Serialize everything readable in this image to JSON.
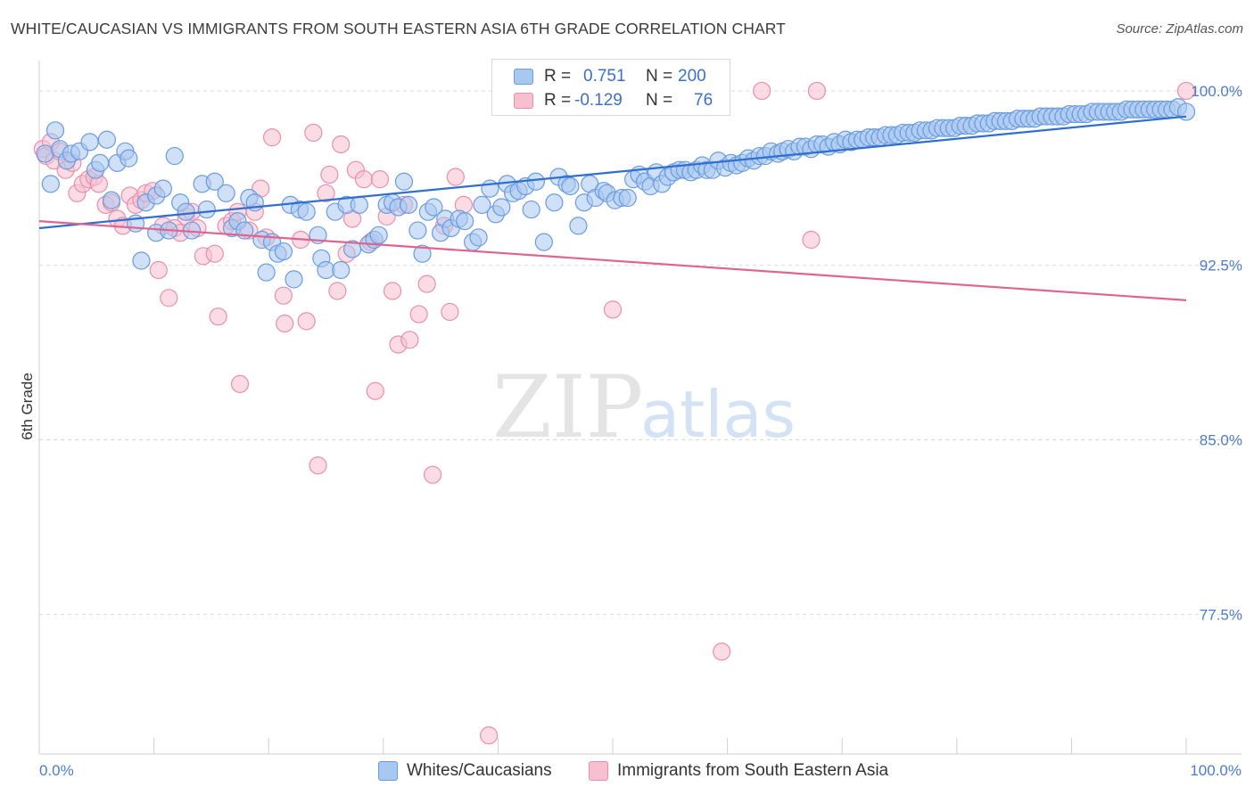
{
  "header": {
    "title": "WHITE/CAUCASIAN VS IMMIGRANTS FROM SOUTH EASTERN ASIA 6TH GRADE CORRELATION CHART",
    "source": "Source: ZipAtlas.com"
  },
  "watermark": {
    "zip": "ZIP",
    "atlas": "atlas"
  },
  "colors": {
    "blue_fill": "#a9c8f0",
    "blue_stroke": "#6a9be0",
    "blue_line": "#2f6fcf",
    "pink_fill": "#f7c0d0",
    "pink_stroke": "#e98fac",
    "pink_line": "#e0648f",
    "tick_text": "#4a7cc9",
    "grid": "#d9d9d9"
  },
  "legend": {
    "rows": [
      {
        "r_label": "R =",
        "r_value": "0.751",
        "n_label": "N =",
        "n_value": "200"
      },
      {
        "r_label": "R =",
        "r_value": "-0.129",
        "n_label": "N =",
        "n_value": "76"
      }
    ]
  },
  "bottom_legend": [
    "Whites/Caucasians",
    "Immigrants from South Eastern Asia"
  ],
  "chart_data": {
    "type": "scatter",
    "xlabel": "",
    "ylabel": "6th Grade",
    "xlim": [
      0,
      100
    ],
    "ylim": [
      71.5,
      101.3
    ],
    "x_tick_labels": [
      "0.0%",
      "100.0%"
    ],
    "y_ticks": [
      77.5,
      85.0,
      92.5,
      100.0
    ],
    "y_tick_labels": [
      "77.5%",
      "85.0%",
      "92.5%",
      "100.0%"
    ],
    "grid": "horizontal dashed",
    "legend_position": "top-center",
    "series": [
      {
        "name": "Whites/Caucasians",
        "r": 0.751,
        "n": 200,
        "trend": {
          "x": [
            0,
            100
          ],
          "y": [
            94.1,
            98.9
          ]
        },
        "points": [
          [
            0.5,
            97.3
          ],
          [
            1.0,
            96.0
          ],
          [
            1.4,
            98.3
          ],
          [
            1.8,
            97.5
          ],
          [
            2.4,
            97.0
          ],
          [
            2.8,
            97.3
          ],
          [
            3.5,
            97.4
          ],
          [
            4.4,
            97.8
          ],
          [
            4.9,
            96.6
          ],
          [
            5.3,
            96.9
          ],
          [
            5.9,
            97.9
          ],
          [
            6.3,
            95.3
          ],
          [
            6.8,
            96.9
          ],
          [
            7.5,
            97.4
          ],
          [
            7.8,
            97.1
          ],
          [
            8.4,
            94.3
          ],
          [
            8.9,
            92.7
          ],
          [
            9.3,
            95.2
          ],
          [
            10.2,
            95.5
          ],
          [
            10.2,
            93.9
          ],
          [
            10.8,
            95.8
          ],
          [
            11.3,
            94.0
          ],
          [
            11.8,
            97.2
          ],
          [
            12.3,
            95.2
          ],
          [
            12.8,
            94.8
          ],
          [
            13.3,
            94.0
          ],
          [
            14.2,
            96.0
          ],
          [
            14.6,
            94.9
          ],
          [
            15.3,
            96.1
          ],
          [
            16.3,
            95.6
          ],
          [
            16.8,
            94.1
          ],
          [
            17.3,
            94.4
          ],
          [
            17.9,
            94.0
          ],
          [
            18.3,
            95.4
          ],
          [
            18.8,
            95.2
          ],
          [
            19.4,
            93.6
          ],
          [
            19.8,
            92.2
          ],
          [
            20.3,
            93.5
          ],
          [
            20.8,
            93.0
          ],
          [
            21.3,
            93.1
          ],
          [
            21.9,
            95.1
          ],
          [
            22.2,
            91.9
          ],
          [
            22.7,
            94.9
          ],
          [
            23.3,
            94.8
          ],
          [
            24.3,
            93.8
          ],
          [
            24.6,
            92.8
          ],
          [
            25.0,
            92.3
          ],
          [
            25.8,
            94.8
          ],
          [
            26.3,
            92.3
          ],
          [
            26.8,
            95.1
          ],
          [
            27.3,
            93.2
          ],
          [
            27.9,
            95.1
          ],
          [
            28.7,
            93.4
          ],
          [
            29.2,
            93.6
          ],
          [
            29.6,
            93.8
          ],
          [
            30.3,
            95.1
          ],
          [
            30.8,
            95.2
          ],
          [
            31.3,
            95.0
          ],
          [
            31.8,
            96.1
          ],
          [
            32.2,
            95.1
          ],
          [
            33.0,
            94.0
          ],
          [
            33.4,
            93.0
          ],
          [
            33.9,
            94.8
          ],
          [
            34.4,
            95.0
          ],
          [
            35.0,
            93.9
          ],
          [
            35.4,
            94.5
          ],
          [
            35.9,
            94.1
          ],
          [
            36.6,
            94.5
          ],
          [
            37.1,
            94.4
          ],
          [
            37.8,
            93.5
          ],
          [
            38.3,
            93.7
          ],
          [
            38.6,
            95.1
          ],
          [
            39.3,
            95.8
          ],
          [
            39.8,
            94.7
          ],
          [
            40.3,
            95.0
          ],
          [
            40.8,
            96.0
          ],
          [
            41.3,
            95.6
          ],
          [
            41.8,
            95.7
          ],
          [
            42.4,
            95.9
          ],
          [
            42.9,
            94.9
          ],
          [
            43.3,
            96.1
          ],
          [
            44.0,
            93.5
          ],
          [
            44.9,
            95.2
          ],
          [
            45.3,
            96.3
          ],
          [
            46.0,
            96.0
          ],
          [
            46.3,
            95.9
          ],
          [
            47.0,
            94.2
          ],
          [
            47.5,
            95.2
          ],
          [
            48.0,
            96.0
          ],
          [
            48.5,
            95.4
          ],
          [
            49.2,
            95.7
          ],
          [
            49.5,
            95.6
          ],
          [
            50.2,
            95.3
          ],
          [
            50.8,
            95.4
          ],
          [
            51.3,
            95.4
          ],
          [
            51.8,
            96.2
          ],
          [
            52.3,
            96.4
          ],
          [
            52.8,
            96.1
          ],
          [
            53.3,
            95.9
          ],
          [
            53.8,
            96.5
          ],
          [
            54.3,
            96.0
          ],
          [
            54.8,
            96.3
          ],
          [
            55.3,
            96.5
          ],
          [
            55.8,
            96.6
          ],
          [
            56.3,
            96.6
          ],
          [
            56.8,
            96.5
          ],
          [
            57.3,
            96.6
          ],
          [
            57.8,
            96.8
          ],
          [
            58.2,
            96.6
          ],
          [
            58.7,
            96.6
          ],
          [
            59.2,
            97.0
          ],
          [
            59.8,
            96.7
          ],
          [
            60.3,
            96.9
          ],
          [
            60.8,
            96.8
          ],
          [
            61.3,
            96.9
          ],
          [
            61.8,
            97.1
          ],
          [
            62.3,
            97.0
          ],
          [
            62.8,
            97.2
          ],
          [
            63.3,
            97.2
          ],
          [
            63.8,
            97.4
          ],
          [
            64.4,
            97.3
          ],
          [
            64.8,
            97.4
          ],
          [
            65.3,
            97.5
          ],
          [
            65.8,
            97.4
          ],
          [
            66.3,
            97.6
          ],
          [
            66.8,
            97.6
          ],
          [
            67.3,
            97.5
          ],
          [
            67.8,
            97.7
          ],
          [
            68.3,
            97.7
          ],
          [
            68.8,
            97.6
          ],
          [
            69.3,
            97.8
          ],
          [
            69.8,
            97.7
          ],
          [
            70.3,
            97.9
          ],
          [
            70.8,
            97.8
          ],
          [
            71.3,
            97.9
          ],
          [
            71.8,
            97.9
          ],
          [
            72.3,
            98.0
          ],
          [
            72.8,
            98.0
          ],
          [
            73.3,
            98.0
          ],
          [
            73.8,
            98.1
          ],
          [
            74.3,
            98.1
          ],
          [
            74.8,
            98.1
          ],
          [
            75.3,
            98.2
          ],
          [
            75.8,
            98.2
          ],
          [
            76.3,
            98.2
          ],
          [
            76.8,
            98.3
          ],
          [
            77.3,
            98.3
          ],
          [
            77.8,
            98.3
          ],
          [
            78.3,
            98.4
          ],
          [
            78.8,
            98.4
          ],
          [
            79.3,
            98.4
          ],
          [
            79.8,
            98.4
          ],
          [
            80.3,
            98.5
          ],
          [
            80.8,
            98.5
          ],
          [
            81.3,
            98.5
          ],
          [
            81.8,
            98.6
          ],
          [
            82.3,
            98.6
          ],
          [
            82.8,
            98.6
          ],
          [
            83.3,
            98.7
          ],
          [
            83.8,
            98.7
          ],
          [
            84.3,
            98.7
          ],
          [
            84.8,
            98.7
          ],
          [
            85.3,
            98.8
          ],
          [
            85.8,
            98.8
          ],
          [
            86.3,
            98.8
          ],
          [
            86.8,
            98.8
          ],
          [
            87.3,
            98.9
          ],
          [
            87.8,
            98.9
          ],
          [
            88.3,
            98.9
          ],
          [
            88.8,
            98.9
          ],
          [
            89.3,
            98.9
          ],
          [
            89.8,
            99.0
          ],
          [
            90.3,
            99.0
          ],
          [
            90.8,
            99.0
          ],
          [
            91.3,
            99.0
          ],
          [
            91.8,
            99.1
          ],
          [
            92.3,
            99.1
          ],
          [
            92.8,
            99.1
          ],
          [
            93.3,
            99.1
          ],
          [
            93.8,
            99.1
          ],
          [
            94.3,
            99.1
          ],
          [
            94.8,
            99.2
          ],
          [
            95.3,
            99.2
          ],
          [
            95.8,
            99.2
          ],
          [
            96.3,
            99.2
          ],
          [
            96.8,
            99.2
          ],
          [
            97.3,
            99.2
          ],
          [
            97.8,
            99.2
          ],
          [
            98.3,
            99.2
          ],
          [
            98.8,
            99.2
          ],
          [
            99.3,
            99.3
          ],
          [
            100.0,
            99.1
          ]
        ]
      },
      {
        "name": "Immigrants from South Eastern Asia",
        "r": -0.129,
        "n": 76,
        "trend": {
          "x": [
            0,
            100
          ],
          "y": [
            94.4,
            91.0
          ]
        },
        "points": [
          [
            0.3,
            97.5
          ],
          [
            0.6,
            97.2
          ],
          [
            1.0,
            97.8
          ],
          [
            1.3,
            97.0
          ],
          [
            1.8,
            97.4
          ],
          [
            2.3,
            96.6
          ],
          [
            2.9,
            96.9
          ],
          [
            3.3,
            95.6
          ],
          [
            3.8,
            96.0
          ],
          [
            4.3,
            96.2
          ],
          [
            4.8,
            96.3
          ],
          [
            5.2,
            96.0
          ],
          [
            5.8,
            95.1
          ],
          [
            6.3,
            95.2
          ],
          [
            6.8,
            94.5
          ],
          [
            7.3,
            94.2
          ],
          [
            7.9,
            95.5
          ],
          [
            8.4,
            95.1
          ],
          [
            8.9,
            95.3
          ],
          [
            9.3,
            95.6
          ],
          [
            9.9,
            95.7
          ],
          [
            10.4,
            92.3
          ],
          [
            10.8,
            94.2
          ],
          [
            11.3,
            91.1
          ],
          [
            11.8,
            94.1
          ],
          [
            12.3,
            93.9
          ],
          [
            12.8,
            94.6
          ],
          [
            13.3,
            94.8
          ],
          [
            13.8,
            94.1
          ],
          [
            14.3,
            92.9
          ],
          [
            15.3,
            93.0
          ],
          [
            15.6,
            90.3
          ],
          [
            16.3,
            94.2
          ],
          [
            16.8,
            94.4
          ],
          [
            17.3,
            94.8
          ],
          [
            17.5,
            87.4
          ],
          [
            18.3,
            94.0
          ],
          [
            18.8,
            94.8
          ],
          [
            19.3,
            95.8
          ],
          [
            19.8,
            93.7
          ],
          [
            20.3,
            98.0
          ],
          [
            21.3,
            91.2
          ],
          [
            21.4,
            90.0
          ],
          [
            22.8,
            93.6
          ],
          [
            23.3,
            90.1
          ],
          [
            23.9,
            98.2
          ],
          [
            24.3,
            83.9
          ],
          [
            25.0,
            95.6
          ],
          [
            25.3,
            96.4
          ],
          [
            26.0,
            91.4
          ],
          [
            26.3,
            97.7
          ],
          [
            26.8,
            93.0
          ],
          [
            27.3,
            94.5
          ],
          [
            27.6,
            96.6
          ],
          [
            28.3,
            96.2
          ],
          [
            28.9,
            93.5
          ],
          [
            29.3,
            87.1
          ],
          [
            29.7,
            96.2
          ],
          [
            30.3,
            94.6
          ],
          [
            30.8,
            91.4
          ],
          [
            31.3,
            89.1
          ],
          [
            31.8,
            95.1
          ],
          [
            32.3,
            89.3
          ],
          [
            33.1,
            90.4
          ],
          [
            33.8,
            91.7
          ],
          [
            34.3,
            83.5
          ],
          [
            35.3,
            94.2
          ],
          [
            35.8,
            90.5
          ],
          [
            36.3,
            96.3
          ],
          [
            37.0,
            95.1
          ],
          [
            39.2,
            72.3
          ],
          [
            50.0,
            90.6
          ],
          [
            59.5,
            75.9
          ],
          [
            63.0,
            100.0
          ],
          [
            67.3,
            93.6
          ],
          [
            67.8,
            100.0
          ],
          [
            100.0,
            100.0
          ]
        ]
      }
    ]
  }
}
